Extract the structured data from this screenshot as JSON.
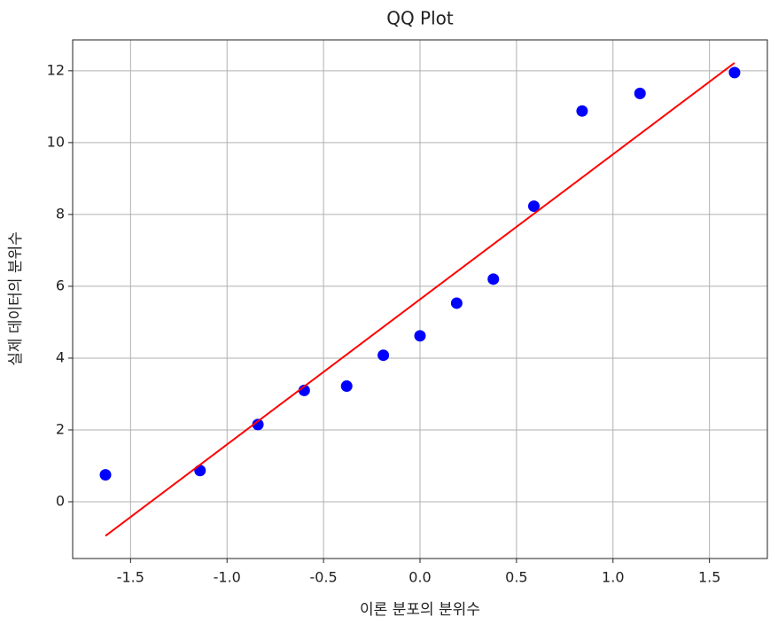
{
  "chart_data": {
    "type": "scatter",
    "title": "QQ Plot",
    "x_label": "이론 분포의 분위수",
    "y_label": "실제 데이터의 분위수",
    "series": [
      {
        "type": "scatter",
        "color": "blue",
        "x": [
          -1.63,
          -1.14,
          -0.84,
          -0.6,
          -0.38,
          -0.19,
          0,
          0.19,
          0.38,
          0.59,
          0.84,
          1.14,
          1.63
        ],
        "values": [
          0.75,
          0.87,
          2.15,
          3.1,
          3.22,
          4.08,
          4.62,
          5.53,
          6.2,
          8.23,
          10.88,
          11.37,
          11.95
        ]
      },
      {
        "type": "line",
        "color": "red",
        "x": [
          -1.63,
          1.63
        ],
        "values": [
          -0.95,
          12.22
        ]
      }
    ],
    "xlim": [
      -1.8,
      1.8
    ],
    "xticks": [
      -1.5,
      {
        "value": -1,
        "label": "-1.0"
      },
      -0.5,
      {
        "value": 0,
        "label": "0.0"
      },
      0.5,
      {
        "value": 1,
        "label": "1.0"
      },
      1.5
    ],
    "ylim": [
      -1.58,
      12.86
    ],
    "yticks": [
      0,
      2,
      4,
      6,
      8,
      10,
      12
    ],
    "grid": true
  }
}
